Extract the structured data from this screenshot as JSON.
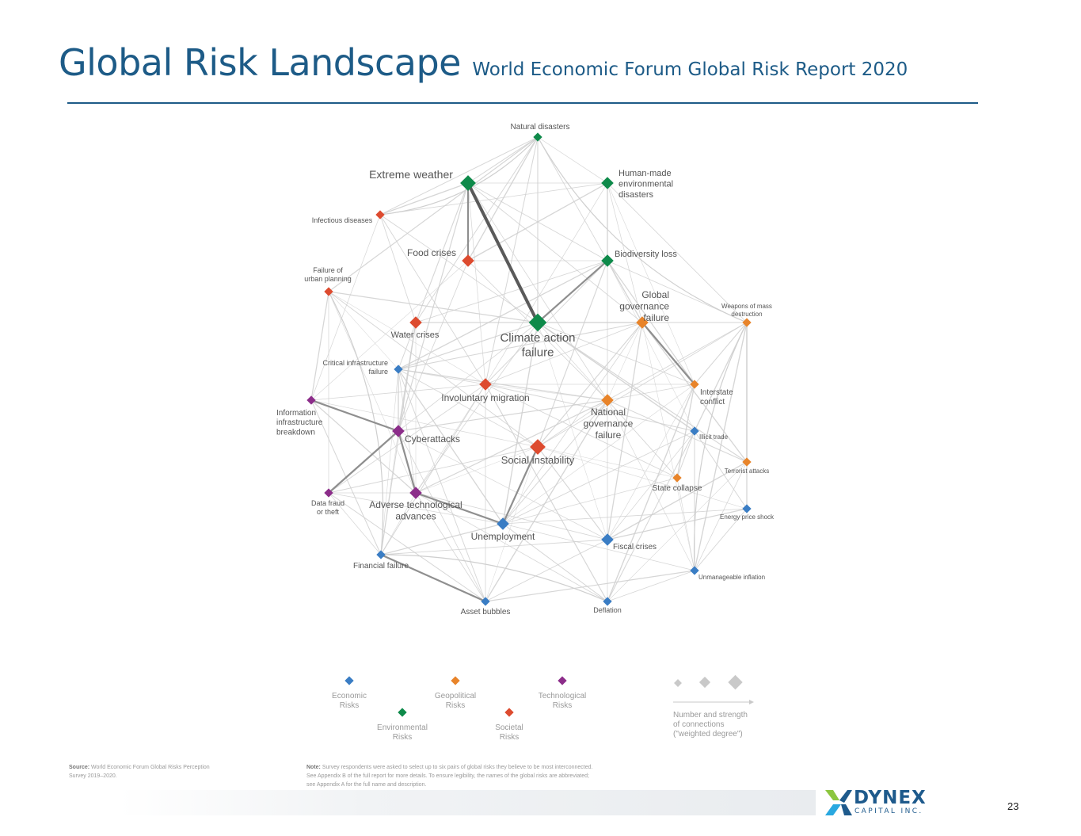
{
  "slide": {
    "title": "Global Risk Landscape",
    "subtitle": "World Economic Forum Global Risk Report 2020",
    "page_number": "23"
  },
  "colors": {
    "economic": "#3a7dc4",
    "geopolitical": "#e8842a",
    "environmental": "#0e8a4a",
    "societal": "#dd4b2f",
    "technological": "#8c2d8a",
    "brand": "#1d5b87"
  },
  "network": {
    "nodes": [
      {
        "id": "natural-disasters",
        "label": [
          "Natural disasters"
        ],
        "category": "environmental",
        "size": "s"
      },
      {
        "id": "extreme-weather",
        "label": [
          "Extreme weather"
        ],
        "category": "environmental",
        "size": "l"
      },
      {
        "id": "human-made-environmental-disasters",
        "label": [
          "Human-made",
          "environmental",
          "disasters"
        ],
        "category": "environmental",
        "size": "m"
      },
      {
        "id": "infectious-diseases",
        "label": [
          "Infectious diseases"
        ],
        "category": "societal",
        "size": "s"
      },
      {
        "id": "food-crises",
        "label": [
          "Food crises"
        ],
        "category": "societal",
        "size": "m"
      },
      {
        "id": "biodiversity-loss",
        "label": [
          "Biodiversity loss"
        ],
        "category": "environmental",
        "size": "m"
      },
      {
        "id": "failure-of-urban-planning",
        "label": [
          "Failure of",
          "urban planning"
        ],
        "category": "societal",
        "size": "s"
      },
      {
        "id": "global-governance-failure",
        "label": [
          "Global",
          "governance",
          "failure"
        ],
        "category": "geopolitical",
        "size": "m"
      },
      {
        "id": "weapons-of-mass-destruction",
        "label": [
          "Weapons of mass",
          "destruction"
        ],
        "category": "geopolitical",
        "size": "s"
      },
      {
        "id": "water-crises",
        "label": [
          "Water crises"
        ],
        "category": "societal",
        "size": "m"
      },
      {
        "id": "climate-action-failure",
        "label": [
          "Climate action",
          "failure"
        ],
        "category": "environmental",
        "size": "xl"
      },
      {
        "id": "critical-infrastructure-failure",
        "label": [
          "Critical infrastructure",
          "failure"
        ],
        "category": "economic",
        "size": "s"
      },
      {
        "id": "involuntary-migration",
        "label": [
          "Involuntary migration"
        ],
        "category": "societal",
        "size": "m"
      },
      {
        "id": "interstate-conflict",
        "label": [
          "Interstate",
          "conflict"
        ],
        "category": "geopolitical",
        "size": "s"
      },
      {
        "id": "information-infrastructure-breakdown",
        "label": [
          "Information",
          "infrastructure",
          "breakdown"
        ],
        "category": "technological",
        "size": "s"
      },
      {
        "id": "national-governance-failure",
        "label": [
          "National",
          "governance",
          "failure"
        ],
        "category": "geopolitical",
        "size": "m"
      },
      {
        "id": "cyberattacks",
        "label": [
          "Cyberattacks"
        ],
        "category": "technological",
        "size": "m"
      },
      {
        "id": "illicit-trade",
        "label": [
          "Illicit trade"
        ],
        "category": "economic",
        "size": "s"
      },
      {
        "id": "social-instability",
        "label": [
          "Social instability"
        ],
        "category": "societal",
        "size": "l"
      },
      {
        "id": "terrorist-attacks",
        "label": [
          "Terrorist attacks"
        ],
        "category": "geopolitical",
        "size": "s"
      },
      {
        "id": "state-collapse",
        "label": [
          "State collapse"
        ],
        "category": "geopolitical",
        "size": "s"
      },
      {
        "id": "data-fraud-or-theft",
        "label": [
          "Data fraud",
          "or theft"
        ],
        "category": "technological",
        "size": "s"
      },
      {
        "id": "adverse-technological-advances",
        "label": [
          "Adverse technological",
          "advances"
        ],
        "category": "technological",
        "size": "m"
      },
      {
        "id": "energy-price-shock",
        "label": [
          "Energy price shock"
        ],
        "category": "economic",
        "size": "s"
      },
      {
        "id": "unemployment",
        "label": [
          "Unemployment"
        ],
        "category": "economic",
        "size": "m"
      },
      {
        "id": "fiscal-crises",
        "label": [
          "Fiscal crises"
        ],
        "category": "economic",
        "size": "m"
      },
      {
        "id": "financial-failure",
        "label": [
          "Financial failure"
        ],
        "category": "economic",
        "size": "s"
      },
      {
        "id": "unmanageable-inflation",
        "label": [
          "Unmanageable inflation"
        ],
        "category": "economic",
        "size": "s"
      },
      {
        "id": "asset-bubbles",
        "label": [
          "Asset bubbles"
        ],
        "category": "economic",
        "size": "s"
      },
      {
        "id": "deflation",
        "label": [
          "Deflation"
        ],
        "category": "economic",
        "size": "s"
      }
    ],
    "strong_edges": [
      [
        "extreme-weather",
        "climate-action-failure"
      ],
      [
        "biodiversity-loss",
        "climate-action-failure"
      ],
      [
        "information-infrastructure-breakdown",
        "cyberattacks"
      ],
      [
        "cyberattacks",
        "data-fraud-or-theft"
      ],
      [
        "adverse-technological-advances",
        "unemployment"
      ],
      [
        "social-instability",
        "unemployment"
      ],
      [
        "financial-failure",
        "asset-bubbles"
      ],
      [
        "global-governance-failure",
        "interstate-conflict"
      ],
      [
        "cyberattacks",
        "adverse-technological-advances"
      ],
      [
        "extreme-weather",
        "food-crises"
      ]
    ]
  },
  "legend": {
    "items": [
      {
        "category": "economic",
        "label": [
          "Economic",
          "Risks"
        ]
      },
      {
        "category": "geopolitical",
        "label": [
          "Geopolitical",
          "Risks"
        ]
      },
      {
        "category": "technological",
        "label": [
          "Technological",
          "Risks"
        ]
      },
      {
        "category": "environmental",
        "label": [
          "Environmental",
          "Risks"
        ]
      },
      {
        "category": "societal",
        "label": [
          "Societal",
          "Risks"
        ]
      }
    ],
    "size_key": [
      "Number and strength",
      "of connections",
      "(\"weighted degree\")"
    ]
  },
  "notes": {
    "source_label": "Source:",
    "source_text": "World Economic Forum Global Risks Perception Survey 2019–2020.",
    "note_label": "Note:",
    "note_text": "Survey respondents were asked to select up to six pairs of global risks they believe to be most interconnected. See Appendix B of the full report for more details. To ensure legibility, the names of the global risks are abbreviated; see Appendix A for the full name and description."
  },
  "logo": {
    "name": "DYNEX",
    "tagline": "CAPITAL INC."
  }
}
